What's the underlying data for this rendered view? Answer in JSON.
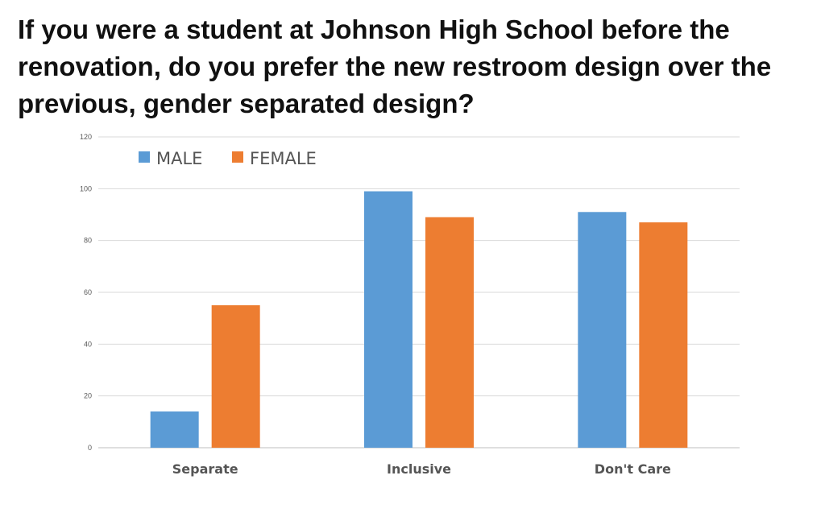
{
  "title": "If you were a student at Johnson High School before the renovation, do you prefer the new restroom design over the previous, gender separated design?",
  "chart_data": {
    "type": "bar",
    "title": "If you were a student at Johnson High School before the renovation, do you prefer the new restroom design over the previous, gender separated design?",
    "categories": [
      "Separate",
      "Inclusive",
      "Don't Care"
    ],
    "series": [
      {
        "name": "MALE",
        "values": [
          14,
          99,
          91
        ],
        "color": "#5B9BD5"
      },
      {
        "name": "FEMALE",
        "values": [
          55,
          89,
          87
        ],
        "color": "#ED7D31"
      }
    ],
    "yticks": [
      "0",
      "20",
      "40",
      "60",
      "80",
      "100",
      "120"
    ],
    "ylim": [
      0,
      120
    ],
    "grid": true,
    "legend_position": "top-left"
  }
}
